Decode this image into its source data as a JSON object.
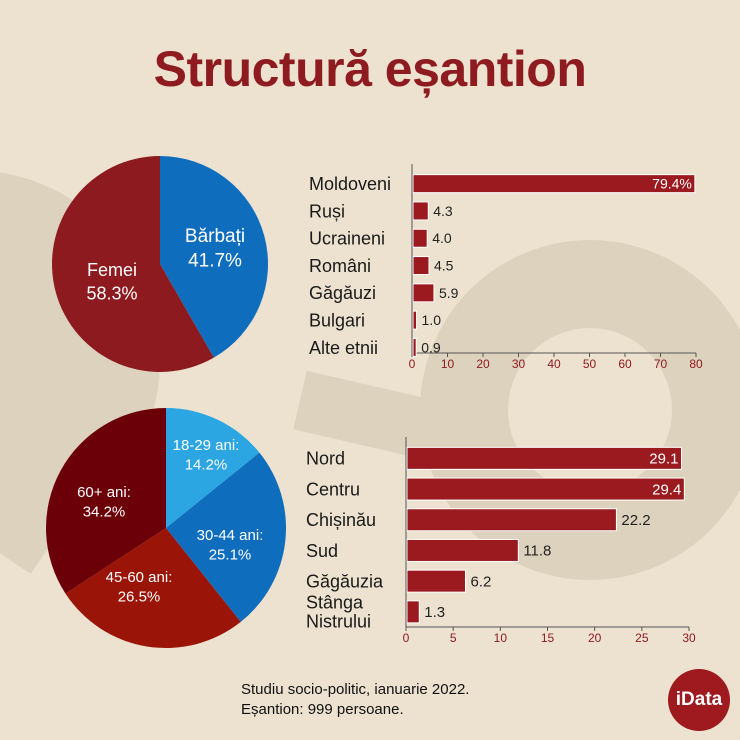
{
  "title": "Structură eșantion",
  "footnote": {
    "line1": "Studiu socio-politic, ianuarie 2022.",
    "line2": "Eșantion: 999 persoane."
  },
  "logo": "iData",
  "colors": {
    "background": "#ece2cf",
    "bar": "#9a1a1f",
    "title": "#8e1b20",
    "decor": "#d8ccb6"
  },
  "chart_data": [
    {
      "type": "pie",
      "labels": [
        "Bărbați",
        "Femei"
      ],
      "display_labels": [
        [
          "Bărbați",
          "41.7%"
        ],
        [
          "Femei",
          "58.3%"
        ]
      ],
      "values": [
        41.7,
        58.3
      ],
      "colors": [
        "#0f6dbd",
        "#8c1a1f"
      ]
    },
    {
      "type": "bar",
      "orientation": "horizontal",
      "categories": [
        "Moldoveni",
        "Ruși",
        "Ucraineni",
        "Români",
        "Găgăuzi",
        "Bulgari",
        "Alte etnii"
      ],
      "values": [
        79.4,
        4.3,
        4.0,
        4.5,
        5.9,
        1.0,
        0.9
      ],
      "value_labels": [
        "79.4%",
        "4.3",
        "4.0",
        "4.5",
        "5.9",
        "1.0",
        "0.9"
      ],
      "xlim": [
        0,
        80
      ],
      "xticks": [
        "0",
        "10",
        "20",
        "30",
        "40",
        "50",
        "60",
        "70",
        "80"
      ]
    },
    {
      "type": "pie",
      "labels": [
        "18-29 ani",
        "30-44 ani",
        "45-60 ani",
        "60+ ani"
      ],
      "display_labels": [
        [
          "18-29 ani:",
          "14.2%"
        ],
        [
          "30-44 ani:",
          "25.1%"
        ],
        [
          "45-60 ani:",
          "26.5%"
        ],
        [
          "60+ ani:",
          "34.2%"
        ]
      ],
      "values": [
        14.2,
        25.1,
        26.5,
        34.2
      ],
      "colors": [
        "#2ba6e3",
        "#0f6dbd",
        "#9a1408",
        "#6b0008"
      ]
    },
    {
      "type": "bar",
      "orientation": "horizontal",
      "categories": [
        [
          "Nord"
        ],
        [
          "Centru"
        ],
        [
          "Chișinău"
        ],
        [
          "Sud"
        ],
        [
          "Găgăuzia"
        ],
        [
          "Stânga",
          "Nistrului"
        ]
      ],
      "values": [
        29.1,
        29.4,
        22.2,
        11.8,
        6.2,
        1.3
      ],
      "value_labels": [
        "29.1",
        "29.4",
        "22.2",
        "11.8",
        "6.2",
        "1.3"
      ],
      "xlim": [
        0,
        30
      ],
      "xticks": [
        "0",
        "5",
        "10",
        "15",
        "20",
        "25",
        "30"
      ]
    }
  ]
}
